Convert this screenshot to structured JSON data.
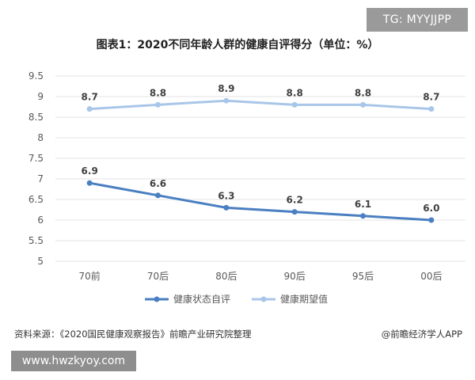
{
  "badge_top": "TG: MYYJJPP",
  "title": "图表1：2020不同年龄人群的健康自评得分（单位：%）",
  "source": "资料来源：《2020国民健康观察报告》前瞻产业研究院整理",
  "brand": "@前瞻经济学人APP",
  "badge_bottom": "www.hwzkyoy.com",
  "colors": {
    "series1": "#4a7fc1",
    "series2": "#a9c6e8",
    "grid": "#e3e3e3",
    "text": "#595959"
  },
  "chart_data": {
    "type": "line",
    "categories": [
      "70前",
      "70后",
      "80后",
      "90后",
      "95后",
      "00后"
    ],
    "series": [
      {
        "name": "健康状态自评",
        "values": [
          6.9,
          6.6,
          6.3,
          6.2,
          6.1,
          6.0
        ],
        "labels": [
          "6.9",
          "6.6",
          "6.3",
          "6.2",
          "6.1",
          "6.0"
        ]
      },
      {
        "name": "健康期望值",
        "values": [
          8.7,
          8.8,
          8.9,
          8.8,
          8.8,
          8.7
        ],
        "labels": [
          "8.7",
          "8.8",
          "8.9",
          "8.8",
          "8.8",
          "8.7"
        ]
      }
    ],
    "yticks": [
      "5",
      "5.5",
      "6",
      "6.5",
      "7",
      "7.5",
      "8",
      "8.5",
      "9",
      "9.5"
    ],
    "ylim": [
      5,
      9.5
    ],
    "grid": true,
    "legend": "bottom"
  }
}
